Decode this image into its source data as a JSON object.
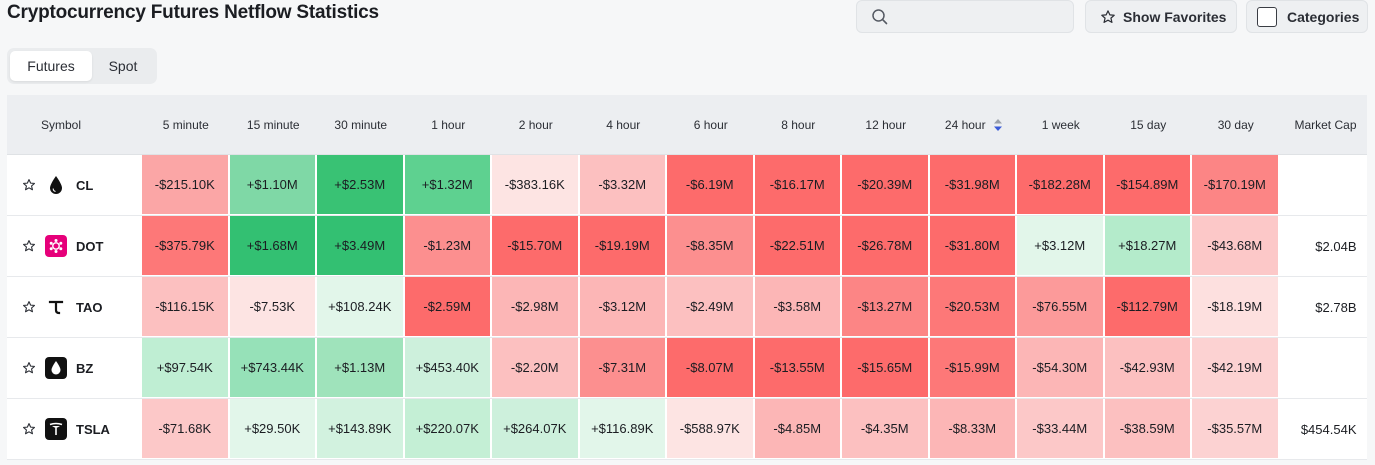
{
  "page_title": "Cryptocurrency Futures Netflow Statistics",
  "search": {
    "placeholder": ""
  },
  "buttons": {
    "show_favorites": "Show Favorites",
    "categories": "Categories"
  },
  "tabs": [
    {
      "label": "Futures",
      "active": true
    },
    {
      "label": "Spot",
      "active": false
    }
  ],
  "columns": [
    "Symbol",
    "5 minute",
    "15 minute",
    "30 minute",
    "1 hour",
    "2 hour",
    "4 hour",
    "6 hour",
    "8 hour",
    "12 hour",
    "24 hour",
    "1 week",
    "15 day",
    "30 day",
    "Market Cap"
  ],
  "sorted_column": "24 hour",
  "colors": {
    "red_strong": "#fd6b6b",
    "red_mid": "#fc8f8f",
    "red_light": "#fcc0c0",
    "red_pale": "#fde4e3",
    "green_strong": "#33c072",
    "green_mid": "#5ed190",
    "green_light": "#9fe3bb",
    "green_pale": "#cdf0dc",
    "green_faint": "#e2f6ea"
  },
  "rows": [
    {
      "symbol": "CL",
      "icon": "oil-drop-icon",
      "market_cap": "",
      "values": [
        "-$215.10K",
        "+$1.10M",
        "+$2.53M",
        "+$1.32M",
        "-$383.16K",
        "-$3.32M",
        "-$6.19M",
        "-$16.17M",
        "-$20.39M",
        "-$31.98M",
        "-$182.28M",
        "-$154.89M",
        "-$170.19M"
      ],
      "tones": [
        "#fba6a6",
        "#7fd8a6",
        "#39c274",
        "#5ed190",
        "#fde4e3",
        "#fcc0c0",
        "#fd6b6b",
        "#fd6b6b",
        "#fd6b6b",
        "#fd6b6b",
        "#fd6b6b",
        "#fd6b6b",
        "#fc8585"
      ]
    },
    {
      "symbol": "DOT",
      "icon": "polkadot-icon",
      "market_cap": "$2.04B",
      "values": [
        "-$375.79K",
        "+$1.68M",
        "+$3.49M",
        "-$1.23M",
        "-$15.70M",
        "-$19.19M",
        "-$8.35M",
        "-$22.51M",
        "-$26.78M",
        "-$31.80M",
        "+$3.12M",
        "+$18.27M",
        "-$43.68M"
      ],
      "tones": [
        "#fd7878",
        "#33c072",
        "#33c072",
        "#fc8f8f",
        "#fd6b6b",
        "#fd6b6b",
        "#fc8f8f",
        "#fd6b6b",
        "#fd6b6b",
        "#fd6b6b",
        "#e2f6ea",
        "#b4ebcb",
        "#fcc8c8"
      ]
    },
    {
      "symbol": "TAO",
      "icon": "tao-icon",
      "market_cap": "$2.78B",
      "values": [
        "-$116.15K",
        "-$7.53K",
        "+$108.24K",
        "-$2.59M",
        "-$2.98M",
        "-$3.12M",
        "-$2.49M",
        "-$3.58M",
        "-$13.27M",
        "-$20.53M",
        "-$76.55M",
        "-$112.79M",
        "-$18.19M"
      ],
      "tones": [
        "#fcc0c0",
        "#fde4e3",
        "#e2f6ea",
        "#fd6b6b",
        "#fcb6b6",
        "#fcb6b6",
        "#fcc0c0",
        "#fcb6b6",
        "#fc8585",
        "#fd7878",
        "#fc9a9a",
        "#fd6b6b",
        "#fde0df"
      ]
    },
    {
      "symbol": "BZ",
      "icon": "brent-oil-icon",
      "market_cap": "",
      "values": [
        "+$97.54K",
        "+$743.44K",
        "+$1.13M",
        "+$453.40K",
        "-$2.20M",
        "-$7.31M",
        "-$8.07M",
        "-$13.55M",
        "-$15.65M",
        "-$15.99M",
        "-$54.30M",
        "-$42.93M",
        "-$42.19M"
      ],
      "tones": [
        "#bfeed3",
        "#96e1b8",
        "#9fe3bb",
        "#cdf0dc",
        "#fcc0c0",
        "#fc8f8f",
        "#fd6b6b",
        "#fd6b6b",
        "#fd6b6b",
        "#fd7878",
        "#fcb6b6",
        "#fcc0c0",
        "#fcd2d2"
      ]
    },
    {
      "symbol": "TSLA",
      "icon": "tesla-icon",
      "market_cap": "$454.54K",
      "values": [
        "-$71.68K",
        "+$29.50K",
        "+$143.89K",
        "+$220.07K",
        "+$264.07K",
        "+$116.89K",
        "-$588.97K",
        "-$4.85M",
        "-$4.35M",
        "-$8.33M",
        "-$33.44M",
        "-$38.59M",
        "-$35.57M"
      ],
      "tones": [
        "#fcc8c8",
        "#e2f6ea",
        "#d2f2df",
        "#c4efd5",
        "#cdf0dc",
        "#e2f6ea",
        "#fde4e3",
        "#fcb6b6",
        "#fcc0c0",
        "#fcb6b6",
        "#fcc8c8",
        "#fcc0c0",
        "#fcd2d2"
      ]
    }
  ]
}
